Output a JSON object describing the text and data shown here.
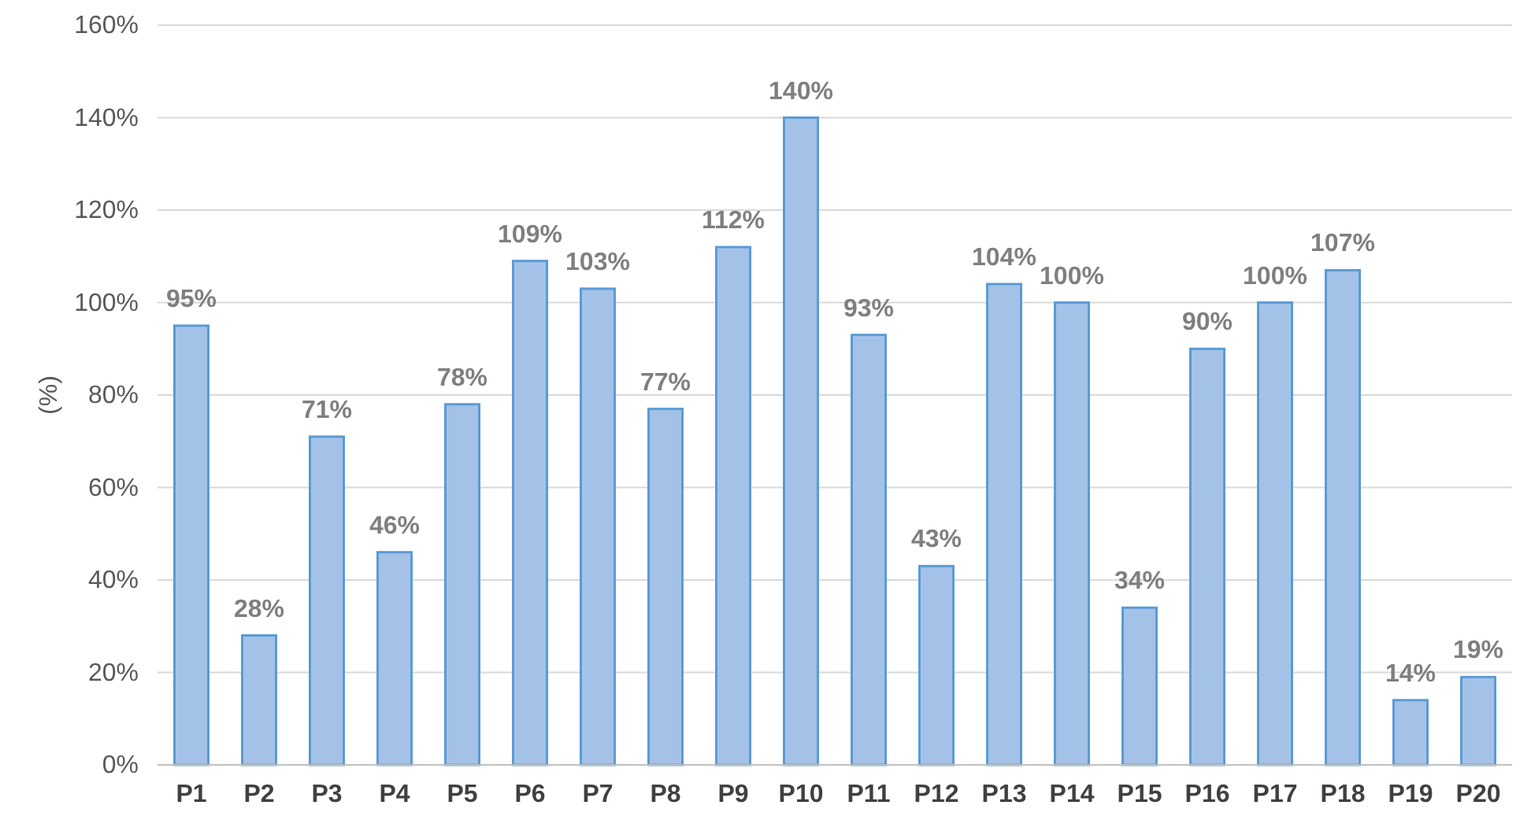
{
  "chart_data": {
    "type": "bar",
    "ylabel": "(%)",
    "categories": [
      "P1",
      "P2",
      "P3",
      "P4",
      "P5",
      "P6",
      "P7",
      "P8",
      "P9",
      "P10",
      "P11",
      "P12",
      "P13",
      "P14",
      "P15",
      "P16",
      "P17",
      "P18",
      "P19",
      "P20"
    ],
    "values": [
      95,
      28,
      71,
      46,
      78,
      109,
      103,
      77,
      112,
      140,
      93,
      43,
      104,
      100,
      34,
      90,
      100,
      107,
      14,
      19
    ],
    "value_labels": [
      "95%",
      "28%",
      "71%",
      "46%",
      "78%",
      "109%",
      "103%",
      "77%",
      "112%",
      "140%",
      "93%",
      "43%",
      "104%",
      "100%",
      "34%",
      "90%",
      "100%",
      "107%",
      "14%",
      "19%"
    ],
    "color": "#a4c2e8",
    "ylim": [
      0,
      160
    ],
    "yticks": [
      {
        "value": 0,
        "label": "0%"
      },
      {
        "value": 20,
        "label": "20%"
      },
      {
        "value": 40,
        "label": "40%"
      },
      {
        "value": 60,
        "label": "60%"
      },
      {
        "value": 80,
        "label": "80%"
      },
      {
        "value": 100,
        "label": "100%"
      },
      {
        "value": 120,
        "label": "120%"
      },
      {
        "value": 140,
        "label": "140%"
      },
      {
        "value": 160,
        "label": "160%"
      }
    ],
    "grid": "y"
  }
}
